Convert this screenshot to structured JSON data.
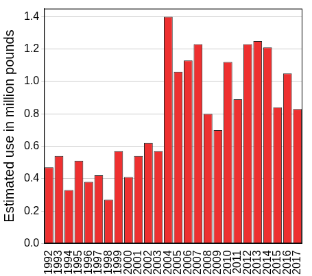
{
  "chart_data": {
    "type": "bar",
    "y_label": "Estimated use in million pounds",
    "categories": [
      "1992",
      "1993",
      "1994",
      "1995",
      "1996",
      "1997",
      "1998",
      "1999",
      "2000",
      "2001",
      "2002",
      "2003",
      "2004",
      "2005",
      "2006",
      "2007",
      "2008",
      "2009",
      "2010",
      "2011",
      "2012",
      "2013",
      "2014",
      "2015",
      "2016",
      "2017"
    ],
    "values": [
      0.47,
      0.54,
      0.33,
      0.51,
      0.38,
      0.42,
      0.27,
      0.57,
      0.41,
      0.54,
      0.62,
      0.57,
      1.4,
      1.06,
      1.13,
      1.23,
      0.8,
      0.7,
      1.12,
      0.89,
      1.23,
      1.25,
      1.21,
      0.84,
      1.05,
      0.83
    ],
    "color": "#ee3030",
    "ylim": [
      0,
      1.45
    ],
    "yticks": [
      {
        "value": 0,
        "label": "0.0"
      },
      0.2,
      0.4,
      0.6,
      0.8,
      {
        "value": 1,
        "label": "1.0"
      },
      1.2,
      1.4
    ],
    "grid": true
  }
}
